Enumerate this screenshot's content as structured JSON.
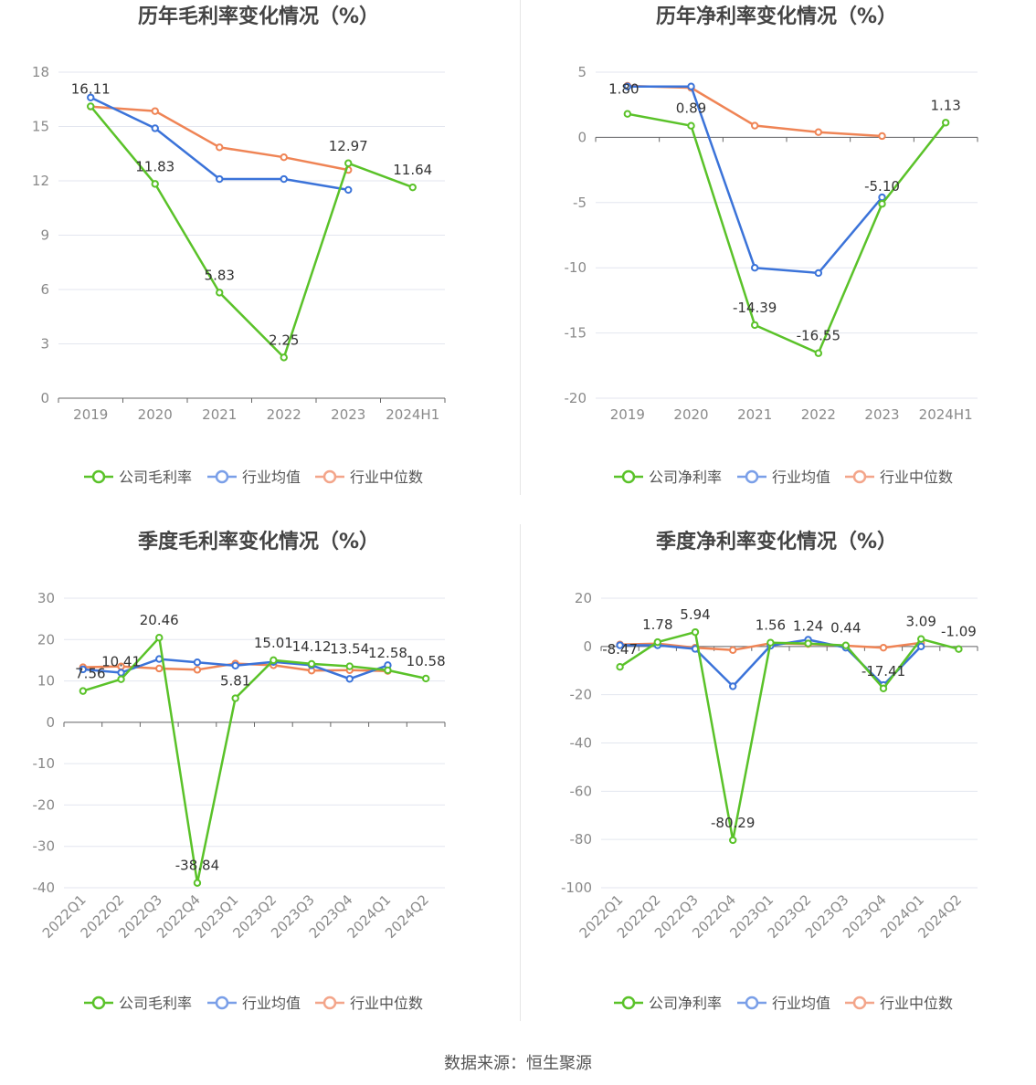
{
  "colors": {
    "company": "#5ac229",
    "avg": "#3b73d9",
    "median": "#ef8455",
    "legend_avg": "#7a9fe8",
    "legend_median": "#f3a58a",
    "grid": "#e3e6ef",
    "axis": "#666666"
  },
  "footer": {
    "source": "数据来源：恒生聚源"
  },
  "chart_data": [
    {
      "type": "line",
      "title": "历年毛利率变化情况（%）",
      "categories": [
        "2019",
        "2020",
        "2021",
        "2022",
        "2023",
        "2024H1"
      ],
      "ylim": [
        0,
        18
      ],
      "yticks": [
        "0",
        "3",
        "6",
        "9",
        "12",
        "15",
        "18"
      ],
      "rotate_labels": false,
      "series": [
        {
          "name": "公司毛利率",
          "key": "company",
          "values": [
            16.11,
            11.83,
            5.83,
            2.25,
            12.97,
            11.64
          ],
          "labels": [
            "16.11",
            "11.83",
            "5.83",
            "2.25",
            "12.97",
            "11.64"
          ]
        },
        {
          "name": "行业均值",
          "key": "avg",
          "values": [
            16.6,
            14.9,
            12.1,
            12.1,
            11.5,
            null
          ]
        },
        {
          "name": "行业中位数",
          "key": "median",
          "values": [
            16.1,
            15.85,
            13.85,
            13.3,
            12.6,
            null
          ]
        }
      ]
    },
    {
      "type": "line",
      "title": "历年净利率变化情况（%）",
      "categories": [
        "2019",
        "2020",
        "2021",
        "2022",
        "2023",
        "2024H1"
      ],
      "ylim": [
        -20,
        5
      ],
      "yticks": [
        "-20",
        "-15",
        "-10",
        "-5",
        "0",
        "5"
      ],
      "rotate_labels": false,
      "series": [
        {
          "name": "公司净利率",
          "key": "company",
          "values": [
            1.8,
            0.89,
            -14.39,
            -16.55,
            -5.1,
            1.13
          ],
          "labels": [
            "1.80",
            "0.89",
            "-14.39",
            "-16.55",
            "-5.10",
            "1.13"
          ]
        },
        {
          "name": "行业均值",
          "key": "avg",
          "values": [
            3.9,
            3.9,
            -10.0,
            -10.4,
            -4.6,
            null
          ]
        },
        {
          "name": "行业中位数",
          "key": "median",
          "values": [
            3.95,
            3.8,
            0.9,
            0.4,
            0.1,
            null
          ]
        }
      ]
    },
    {
      "type": "line",
      "title": "季度毛利率变化情况（%）",
      "categories": [
        "2022Q1",
        "2022Q2",
        "2022Q3",
        "2022Q4",
        "2023Q1",
        "2023Q2",
        "2023Q3",
        "2023Q4",
        "2024Q1",
        "2024Q2"
      ],
      "ylim": [
        -40,
        30
      ],
      "yticks": [
        "-40",
        "-30",
        "-20",
        "-10",
        "0",
        "10",
        "20",
        "30"
      ],
      "rotate_labels": true,
      "series": [
        {
          "name": "公司毛利率",
          "key": "company",
          "values": [
            7.56,
            10.41,
            20.46,
            -38.84,
            5.81,
            15.01,
            14.12,
            13.54,
            12.58,
            10.58
          ],
          "labels": [
            "7.56",
            "10.41",
            "20.46",
            "-38.84",
            "5.81",
            "15.01",
            "14.12",
            "13.54",
            "12.58",
            "10.58"
          ]
        },
        {
          "name": "行业均值",
          "key": "avg",
          "values": [
            12.8,
            12.0,
            15.3,
            14.5,
            13.7,
            14.6,
            13.8,
            10.5,
            13.8,
            null
          ]
        },
        {
          "name": "行业中位数",
          "key": "median",
          "values": [
            13.3,
            13.5,
            13.0,
            12.7,
            14.2,
            13.8,
            12.5,
            12.6,
            12.4,
            null
          ]
        }
      ]
    },
    {
      "type": "line",
      "title": "季度净利率变化情况（%）",
      "categories": [
        "2022Q1",
        "2022Q2",
        "2022Q3",
        "2022Q4",
        "2023Q1",
        "2023Q2",
        "2023Q3",
        "2023Q4",
        "2024Q1",
        "2024Q2"
      ],
      "ylim": [
        -100,
        20
      ],
      "yticks": [
        "-100",
        "-80",
        "-60",
        "-40",
        "-20",
        "0",
        "20"
      ],
      "rotate_labels": true,
      "series": [
        {
          "name": "公司净利率",
          "key": "company",
          "values": [
            -8.47,
            1.78,
            5.94,
            -80.29,
            1.56,
            1.24,
            0.44,
            -17.41,
            3.09,
            -1.09
          ],
          "labels": [
            "-8.47",
            "1.78",
            "5.94",
            "-80.29",
            "1.56",
            "1.24",
            "0.44",
            "-17.41",
            "3.09",
            "-1.09"
          ]
        },
        {
          "name": "行业均值",
          "key": "avg",
          "values": [
            0.5,
            0.5,
            -1.0,
            -16.5,
            0.3,
            2.8,
            -0.5,
            -16.0,
            0.0,
            null
          ]
        },
        {
          "name": "行业中位数",
          "key": "median",
          "values": [
            0.8,
            1.2,
            -0.5,
            -1.5,
            1.3,
            1.0,
            0.3,
            -0.5,
            1.5,
            null
          ]
        }
      ]
    }
  ]
}
